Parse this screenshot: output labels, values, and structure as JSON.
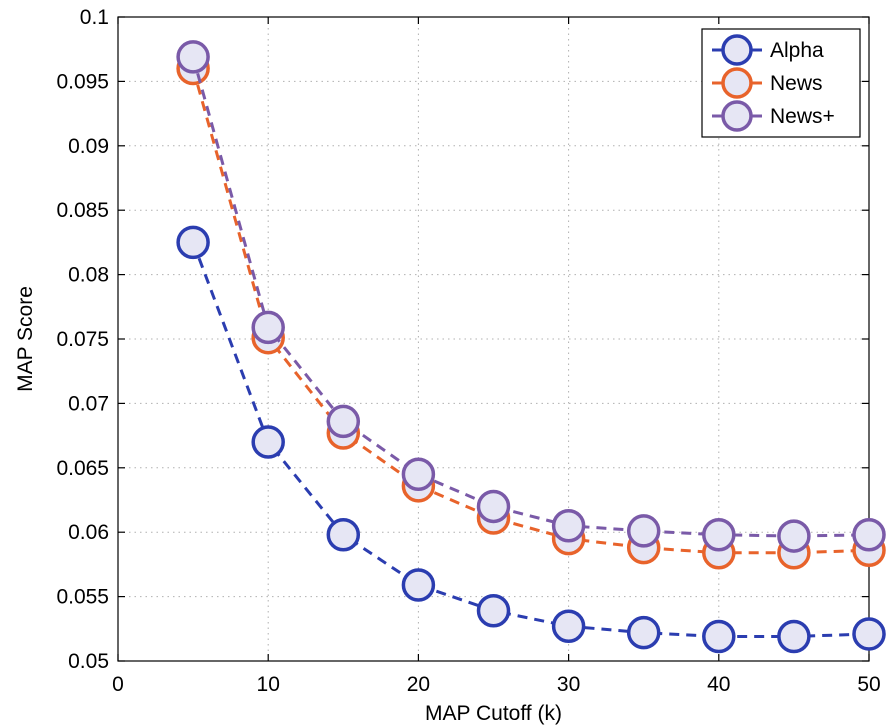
{
  "chart_data": {
    "type": "line",
    "title": "",
    "xlabel": "MAP Cutoff (k)",
    "ylabel": "MAP Score",
    "xlim": [
      0,
      50
    ],
    "ylim": [
      0.05,
      0.1
    ],
    "xticks": [
      0,
      10,
      20,
      30,
      40,
      50
    ],
    "xtick_labels": [
      "0",
      "10",
      "20",
      "30",
      "40",
      "50"
    ],
    "yticks": [
      0.05,
      0.055,
      0.06,
      0.065,
      0.07,
      0.075,
      0.08,
      0.085,
      0.09,
      0.095,
      0.1
    ],
    "ytick_labels": [
      "0.05",
      "0.055",
      "0.06",
      "0.065",
      "0.07",
      "0.075",
      "0.08",
      "0.085",
      "0.09",
      "0.095",
      "0.1"
    ],
    "grid": true,
    "legend_position": "top-right",
    "x": [
      5,
      10,
      15,
      20,
      25,
      30,
      35,
      40,
      45,
      50
    ],
    "series": [
      {
        "name": "Alpha",
        "color": "#2b3db0",
        "values": [
          0.0825,
          0.067,
          0.0598,
          0.0559,
          0.0539,
          0.0527,
          0.0522,
          0.0519,
          0.0519,
          0.0521
        ]
      },
      {
        "name": "News",
        "color": "#e8632b",
        "values": [
          0.096,
          0.0751,
          0.0677,
          0.0636,
          0.0611,
          0.0595,
          0.0588,
          0.0584,
          0.0584,
          0.0586
        ]
      },
      {
        "name": "News+",
        "color": "#7a5aa8",
        "values": [
          0.0969,
          0.0759,
          0.0686,
          0.0645,
          0.062,
          0.0605,
          0.0601,
          0.0598,
          0.0597,
          0.0598
        ]
      }
    ]
  }
}
